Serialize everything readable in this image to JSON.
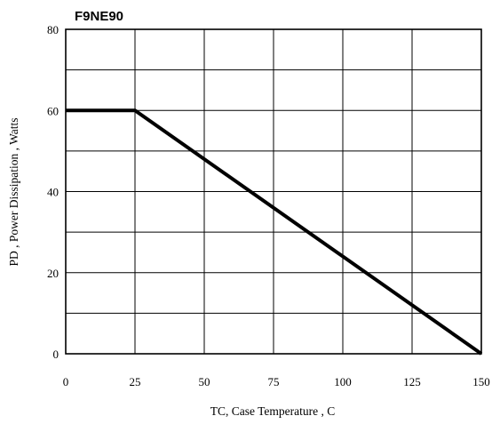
{
  "chart_data": {
    "type": "line",
    "title": "F9NE90",
    "xlabel": "TC, Case Temperature , C",
    "ylabel": "PD , Power Dissipation ,  Watts",
    "xlim": [
      0,
      150
    ],
    "ylim": [
      0,
      80
    ],
    "x_ticks": [
      "0",
      "25",
      "50",
      "75",
      "100",
      "125",
      "150"
    ],
    "y_ticks": [
      "0",
      "20",
      "40",
      "60",
      "80"
    ],
    "x_gridlines": [
      0,
      25,
      50,
      75,
      100,
      125,
      150
    ],
    "y_gridlines": [
      0,
      10,
      20,
      30,
      40,
      50,
      60,
      70,
      80
    ],
    "grid": true,
    "series": [
      {
        "x": [
          0,
          25,
          150
        ],
        "y": [
          60,
          60,
          0
        ]
      }
    ]
  }
}
